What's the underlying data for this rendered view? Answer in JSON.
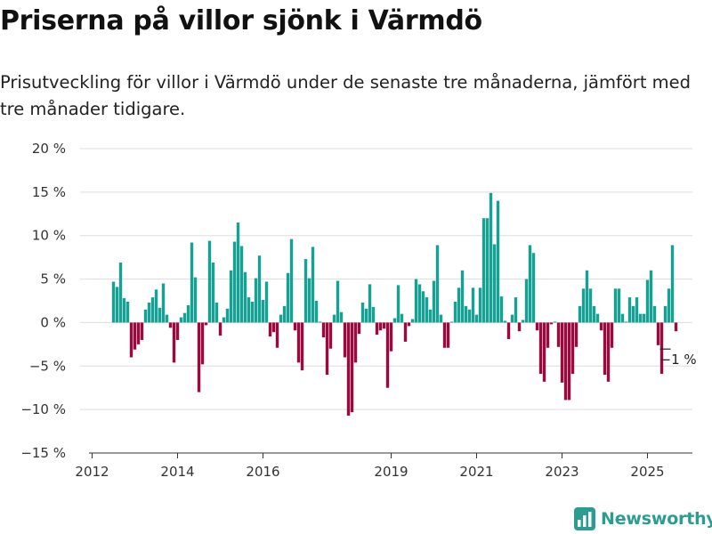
{
  "title": "Priserna på villor sjönk i Värmdö",
  "subtitle": "Prisutveckling för villor i Värmdö under de senaste tre månaderna, jämfört med tre månader tidigare.",
  "logo": {
    "text": "Newsworthy",
    "icon": "bar-chart-logo-icon",
    "color": "#2b9c91"
  },
  "chart_data": {
    "type": "bar",
    "title": "",
    "xlabel": "",
    "ylabel": "",
    "ylim": [
      -15,
      20
    ],
    "y_ticks": [
      20,
      15,
      10,
      5,
      0,
      -5,
      -10,
      -15
    ],
    "y_tick_labels": [
      "20 %",
      "15 %",
      "10 %",
      "5 %",
      "0 %",
      "−5 %",
      "−10 %",
      "−15 %"
    ],
    "x_ticks": [
      {
        "label": "2012",
        "month": "2012-01"
      },
      {
        "label": "2014",
        "month": "2014-01"
      },
      {
        "label": "2016",
        "month": "2016-01"
      },
      {
        "label": "2019",
        "month": "2019-01"
      },
      {
        "label": "2021",
        "month": "2021-01"
      },
      {
        "label": "2023",
        "month": "2023-01"
      },
      {
        "label": "2025",
        "month": "2025-01"
      }
    ],
    "grid": true,
    "colors": {
      "positive": "#16a195",
      "negative": "#9b0a3f"
    },
    "annotation": {
      "text": "−1 %",
      "month": "2025-09"
    },
    "series": [
      {
        "start_month": "2012-07",
        "values": [
          4.7,
          4.1,
          6.9,
          2.8,
          2.4,
          -4.0,
          -3.1,
          -2.5,
          -2.0,
          1.5,
          2.3,
          2.9,
          3.8,
          1.7,
          4.5,
          0.9,
          -0.6,
          -4.6,
          -2.0,
          0.6,
          1.1,
          2.0,
          9.2,
          5.2,
          -8.0,
          -4.8,
          -0.3,
          9.4,
          6.9,
          2.3,
          -1.5,
          0.6,
          1.6,
          6.0,
          9.3,
          11.5,
          8.8,
          5.8,
          2.9,
          2.4,
          5.1,
          7.7,
          2.6,
          4.7,
          -1.6,
          -1.1,
          -2.9,
          0.9,
          1.9,
          5.7,
          9.6,
          -0.9,
          -4.6,
          -5.5,
          7.3,
          5.1,
          8.7,
          2.5,
          0.1,
          -1.7,
          -6.0,
          -3.0,
          0.9,
          4.8,
          1.2,
          -4.0,
          -10.7,
          -10.3,
          -4.6,
          -1.3,
          2.3,
          1.6,
          4.4,
          1.8,
          -1.4,
          -0.9,
          -0.7,
          -7.5,
          -3.3,
          0.5,
          4.3,
          1.0,
          -2.2,
          -0.4,
          0.4,
          5.0,
          4.4,
          3.6,
          2.9,
          1.5,
          4.8,
          8.9,
          0.9,
          -2.9,
          -2.9,
          0.1,
          2.4,
          4.0,
          6.0,
          1.9,
          1.5,
          4.0,
          0.9,
          4.0,
          12.0,
          12.0,
          14.9,
          9.0,
          14.0,
          3.0,
          0.2,
          -1.9,
          0.9,
          2.9,
          -1.0,
          0.3,
          5.0,
          8.9,
          8.0,
          -0.9,
          -5.9,
          -6.8,
          -2.9,
          -0.2,
          0.1,
          -2.8,
          -6.9,
          -8.9,
          -8.9,
          -5.9,
          -2.8,
          1.9,
          3.9,
          6.0,
          3.9,
          1.9,
          1.0,
          -0.9,
          -6.0,
          -6.8,
          -2.9,
          3.9,
          3.9,
          1.0,
          0.1,
          2.9,
          1.9,
          2.9,
          1.0,
          1.0,
          4.9,
          6.0,
          1.9,
          -2.6,
          -5.9,
          1.9,
          3.9,
          8.9,
          -1.0
        ]
      }
    ]
  }
}
